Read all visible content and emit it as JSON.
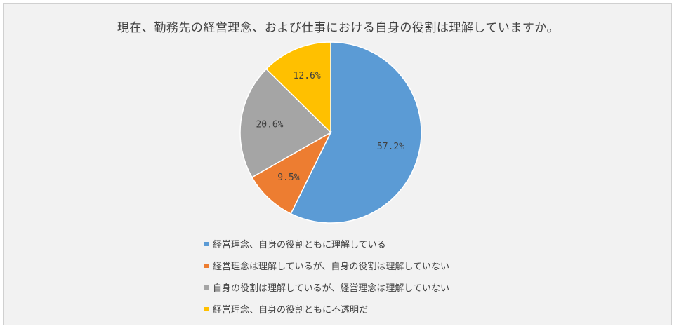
{
  "chart_data": {
    "type": "pie",
    "title": "現在、勤務先の経営理念、および仕事における自身の役割は理解していますか。",
    "slices": [
      {
        "label": "経営理念、自身の役割ともに理解している",
        "value": 57.2,
        "display": "57.2%",
        "color": "#5b9bd5"
      },
      {
        "label": "経営理念は理解しているが、自身の役割は理解していない",
        "value": 9.5,
        "display": "9.5%",
        "color": "#ed7d31"
      },
      {
        "label": "自身の役割は理解しているが、経営理念は理解していない",
        "value": 20.6,
        "display": "20.6%",
        "color": "#a5a5a5"
      },
      {
        "label": "経営理念、自身の役割ともに不透明だ",
        "value": 12.6,
        "display": "12.6%",
        "color": "#ffc000"
      }
    ],
    "legend_position": "bottom"
  }
}
